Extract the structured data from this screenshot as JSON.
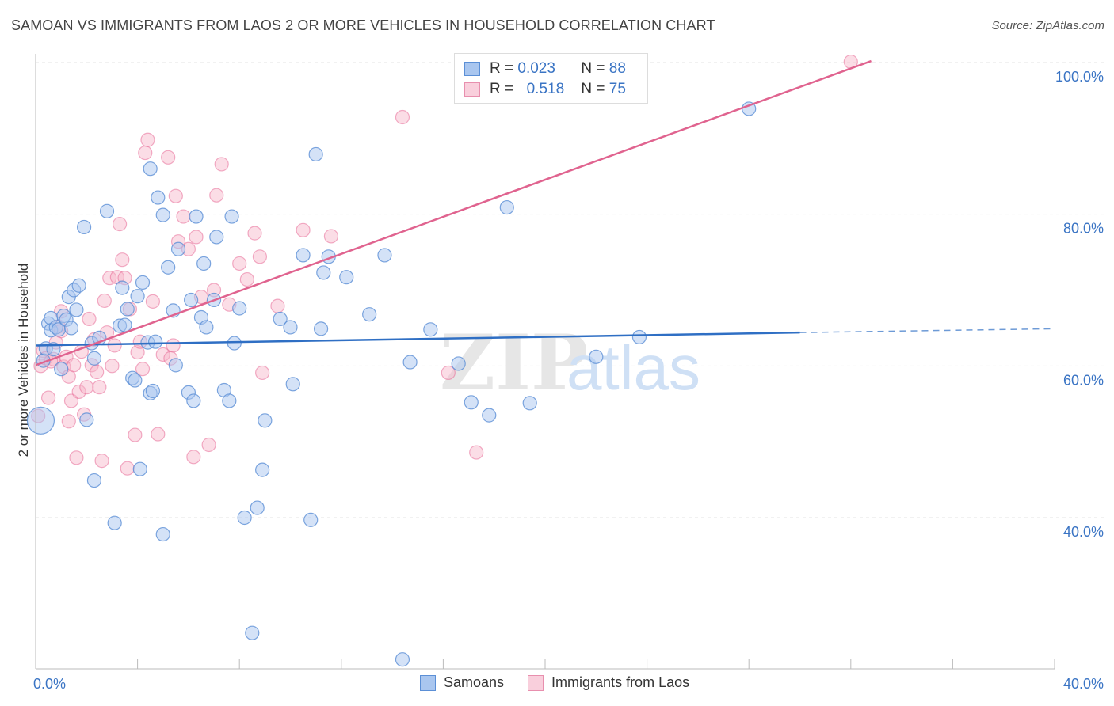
{
  "header": {
    "title": "SAMOAN VS IMMIGRANTS FROM LAOS 2 OR MORE VEHICLES IN HOUSEHOLD CORRELATION CHART",
    "source": "Source: ZipAtlas.com"
  },
  "legend": {
    "rows": [
      {
        "r_label": "R =",
        "r_value": "0.023",
        "n_label": "N =",
        "n_value": "88"
      },
      {
        "r_label": "R =",
        "r_value": "0.518",
        "n_label": "N =",
        "n_value": "75"
      }
    ]
  },
  "bottom_legend": {
    "series1": "Samoans",
    "series2": "Immigrants from Laos"
  },
  "watermark": {
    "zip": "ZIP",
    "atlas": "atlas"
  },
  "colors": {
    "blue": "#5b8fd6",
    "blue_fill": "#a9c6ef",
    "pink": "#e76c98",
    "pink_fill": "#f6b3c8",
    "trend_blue": "#2f6fc4",
    "trend_pink": "#e0638f",
    "tick_text": "#3a74c4"
  },
  "chart_data": {
    "type": "scatter",
    "title": "SAMOAN VS IMMIGRANTS FROM LAOS 2 OR MORE VEHICLES IN HOUSEHOLD CORRELATION CHART",
    "xlabel": "",
    "ylabel": "2 or more Vehicles in Household",
    "xlim": [
      0,
      40
    ],
    "ylim": [
      20,
      102
    ],
    "x_tick_labels": [
      "0.0%",
      "40.0%"
    ],
    "y_ticks": [
      40,
      60,
      80,
      100
    ],
    "y_tick_labels": [
      "40.0%",
      "60.0%",
      "80.0%",
      "100.0%"
    ],
    "grid": true,
    "legend_position": "top-center",
    "series": [
      {
        "name": "Samoans",
        "R": 0.023,
        "N": 88,
        "trend": {
          "x": [
            0,
            30,
            40
          ],
          "y": [
            62.7,
            64.4,
            64.9
          ],
          "solid_to": 30
        },
        "points": [
          [
            0.2,
            52.8
          ],
          [
            0.3,
            60.7
          ],
          [
            0.4,
            62.3
          ],
          [
            0.5,
            65.6
          ],
          [
            0.6,
            66.3
          ],
          [
            0.6,
            64.7
          ],
          [
            0.7,
            62.2
          ],
          [
            0.8,
            65.1
          ],
          [
            0.9,
            64.8
          ],
          [
            1.0,
            59.6
          ],
          [
            1.1,
            66.6
          ],
          [
            1.2,
            66.1
          ],
          [
            1.3,
            69.1
          ],
          [
            1.4,
            65.0
          ],
          [
            1.5,
            70.0
          ],
          [
            1.6,
            67.4
          ],
          [
            1.7,
            70.6
          ],
          [
            1.9,
            78.3
          ],
          [
            2.0,
            52.9
          ],
          [
            2.2,
            63.0
          ],
          [
            2.3,
            61.0
          ],
          [
            2.8,
            80.4
          ],
          [
            2.5,
            63.7
          ],
          [
            3.3,
            65.3
          ],
          [
            3.4,
            70.3
          ],
          [
            3.5,
            65.4
          ],
          [
            3.6,
            67.5
          ],
          [
            3.8,
            58.4
          ],
          [
            3.9,
            58.1
          ],
          [
            4.1,
            46.4
          ],
          [
            4.0,
            69.2
          ],
          [
            4.2,
            71.0
          ],
          [
            4.4,
            63.1
          ],
          [
            4.5,
            56.4
          ],
          [
            4.7,
            63.2
          ],
          [
            4.5,
            86.0
          ],
          [
            4.8,
            82.2
          ],
          [
            5.0,
            79.9
          ],
          [
            5.2,
            73.0
          ],
          [
            5.4,
            67.3
          ],
          [
            5.5,
            60.1
          ],
          [
            5.6,
            75.4
          ],
          [
            6.0,
            56.5
          ],
          [
            6.1,
            68.7
          ],
          [
            6.2,
            55.4
          ],
          [
            6.3,
            79.7
          ],
          [
            6.5,
            66.4
          ],
          [
            6.6,
            73.5
          ],
          [
            6.7,
            65.1
          ],
          [
            7.0,
            68.7
          ],
          [
            7.1,
            77.0
          ],
          [
            7.4,
            56.8
          ],
          [
            7.6,
            55.4
          ],
          [
            7.7,
            79.7
          ],
          [
            7.8,
            63.0
          ],
          [
            8.0,
            67.6
          ],
          [
            8.2,
            40.0
          ],
          [
            8.5,
            24.8
          ],
          [
            8.7,
            41.3
          ],
          [
            8.9,
            46.3
          ],
          [
            9.0,
            52.8
          ],
          [
            9.6,
            66.2
          ],
          [
            10.1,
            57.6
          ],
          [
            10.0,
            65.1
          ],
          [
            10.5,
            74.6
          ],
          [
            10.8,
            39.7
          ],
          [
            11.0,
            87.9
          ],
          [
            11.2,
            64.9
          ],
          [
            11.3,
            72.3
          ],
          [
            11.5,
            74.4
          ],
          [
            12.2,
            71.7
          ],
          [
            13.1,
            66.8
          ],
          [
            13.7,
            74.6
          ],
          [
            14.7,
            60.5
          ],
          [
            15.5,
            64.8
          ],
          [
            16.6,
            60.3
          ],
          [
            17.1,
            55.2
          ],
          [
            17.8,
            53.5
          ],
          [
            18.5,
            80.9
          ],
          [
            19.4,
            55.1
          ],
          [
            22.0,
            61.2
          ],
          [
            23.7,
            63.8
          ],
          [
            28.0,
            93.9
          ],
          [
            3.1,
            39.3
          ],
          [
            5.0,
            37.8
          ],
          [
            2.3,
            44.9
          ],
          [
            4.6,
            56.7
          ],
          [
            14.4,
            21.3
          ]
        ]
      },
      {
        "name": "Immigrants from Laos",
        "R": 0.518,
        "N": 75,
        "trend": {
          "x": [
            0,
            32.8
          ],
          "y": [
            60.1,
            100.2
          ]
        },
        "points": [
          [
            0.1,
            53.4
          ],
          [
            0.2,
            60.0
          ],
          [
            0.3,
            62.0
          ],
          [
            0.4,
            61.0
          ],
          [
            0.5,
            55.8
          ],
          [
            0.7,
            60.9
          ],
          [
            0.8,
            63.1
          ],
          [
            0.9,
            65.2
          ],
          [
            1.0,
            67.2
          ],
          [
            1.1,
            59.9
          ],
          [
            1.2,
            61.2
          ],
          [
            1.3,
            58.6
          ],
          [
            1.4,
            55.4
          ],
          [
            1.5,
            60.1
          ],
          [
            1.6,
            47.9
          ],
          [
            1.7,
            56.6
          ],
          [
            1.8,
            61.9
          ],
          [
            1.9,
            53.6
          ],
          [
            2.0,
            57.2
          ],
          [
            2.1,
            66.2
          ],
          [
            2.2,
            60.1
          ],
          [
            2.3,
            63.5
          ],
          [
            2.4,
            59.2
          ],
          [
            2.5,
            57.2
          ],
          [
            2.6,
            47.5
          ],
          [
            2.8,
            64.4
          ],
          [
            2.9,
            71.6
          ],
          [
            3.0,
            60.0
          ],
          [
            3.1,
            62.7
          ],
          [
            3.2,
            71.7
          ],
          [
            3.3,
            78.7
          ],
          [
            3.4,
            74.0
          ],
          [
            3.5,
            71.6
          ],
          [
            3.6,
            46.5
          ],
          [
            3.7,
            67.5
          ],
          [
            3.9,
            50.9
          ],
          [
            4.0,
            61.8
          ],
          [
            4.1,
            63.2
          ],
          [
            4.2,
            59.6
          ],
          [
            4.3,
            88.1
          ],
          [
            4.4,
            89.8
          ],
          [
            4.6,
            68.5
          ],
          [
            4.8,
            51.0
          ],
          [
            5.0,
            61.5
          ],
          [
            5.2,
            87.5
          ],
          [
            5.3,
            61.0
          ],
          [
            5.4,
            62.7
          ],
          [
            5.5,
            82.4
          ],
          [
            5.6,
            76.4
          ],
          [
            5.8,
            79.7
          ],
          [
            6.0,
            75.4
          ],
          [
            6.2,
            48.0
          ],
          [
            6.3,
            77.0
          ],
          [
            6.5,
            69.1
          ],
          [
            6.8,
            49.6
          ],
          [
            7.0,
            70.0
          ],
          [
            7.1,
            82.5
          ],
          [
            7.3,
            86.6
          ],
          [
            7.6,
            68.1
          ],
          [
            8.0,
            73.5
          ],
          [
            8.3,
            71.4
          ],
          [
            8.6,
            77.5
          ],
          [
            8.8,
            74.4
          ],
          [
            8.9,
            59.1
          ],
          [
            9.5,
            67.9
          ],
          [
            10.5,
            77.9
          ],
          [
            11.6,
            77.1
          ],
          [
            14.4,
            92.8
          ],
          [
            16.2,
            59.1
          ],
          [
            17.3,
            48.6
          ],
          [
            32.0,
            100.1
          ],
          [
            1.0,
            64.6
          ],
          [
            0.6,
            60.6
          ],
          [
            2.7,
            68.6
          ],
          [
            1.3,
            52.7
          ]
        ]
      }
    ]
  }
}
